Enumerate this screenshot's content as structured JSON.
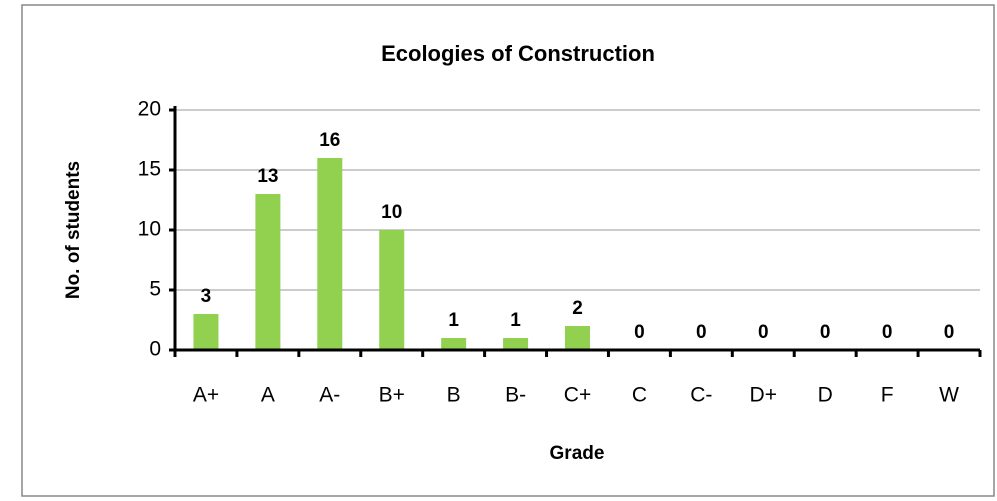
{
  "chart_data": {
    "type": "bar",
    "title": "Ecologies of Construction",
    "x_label": "Grade",
    "y_label": "No. of students",
    "categories": [
      "A+",
      "A",
      "A-",
      "B+",
      "B",
      "B-",
      "C+",
      "C",
      "C-",
      "D+",
      "D",
      "F",
      "W"
    ],
    "values": [
      3,
      13,
      16,
      10,
      1,
      1,
      2,
      0,
      0,
      0,
      0,
      0,
      0
    ],
    "color": "#92d050",
    "ylim": [
      0,
      20
    ],
    "yticks": [
      0,
      5,
      10,
      15,
      20
    ],
    "grid": true
  }
}
